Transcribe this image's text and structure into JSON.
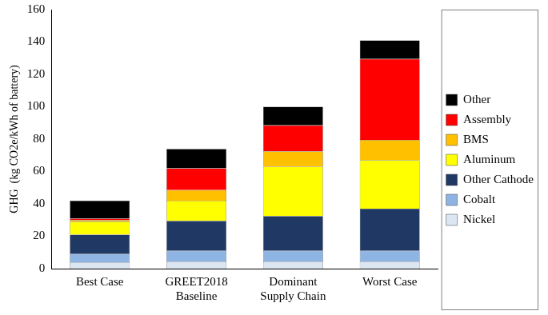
{
  "chart_data": {
    "type": "bar",
    "stacked": true,
    "grid": false,
    "legend": "right",
    "y_label": "GHG  (kg CO2e/kWh of battery)",
    "categories": [
      "Best Case",
      [
        "GREET2018",
        "Baseline"
      ],
      [
        "Dominant",
        "Supply Chain"
      ],
      "Worst Case"
    ],
    "ylim": [
      0,
      160
    ],
    "yticks": [
      0,
      20,
      40,
      60,
      80,
      100,
      120,
      140,
      160
    ],
    "series": [
      {
        "name": "Nickel",
        "color": "#dce6f2",
        "values": [
          4,
          4.5,
          4.5,
          4.5
        ]
      },
      {
        "name": "Cobalt",
        "color": "#8eb4e3",
        "values": [
          5,
          6.5,
          6.5,
          6.5
        ]
      },
      {
        "name": "Other Cathode",
        "color": "#1f3864",
        "values": [
          12,
          18.5,
          21.5,
          26
        ]
      },
      {
        "name": "Aluminum",
        "color": "#ffff00",
        "values": [
          8,
          12.5,
          30.5,
          30
        ]
      },
      {
        "name": "BMS",
        "color": "#ffc000",
        "values": [
          1,
          6.5,
          9.5,
          12.5
        ]
      },
      {
        "name": "Assembly",
        "color": "#ff0000",
        "values": [
          1,
          13.5,
          16,
          50
        ]
      },
      {
        "name": "Other",
        "color": "#000000",
        "values": [
          11,
          12,
          11.5,
          11.5
        ]
      }
    ]
  }
}
